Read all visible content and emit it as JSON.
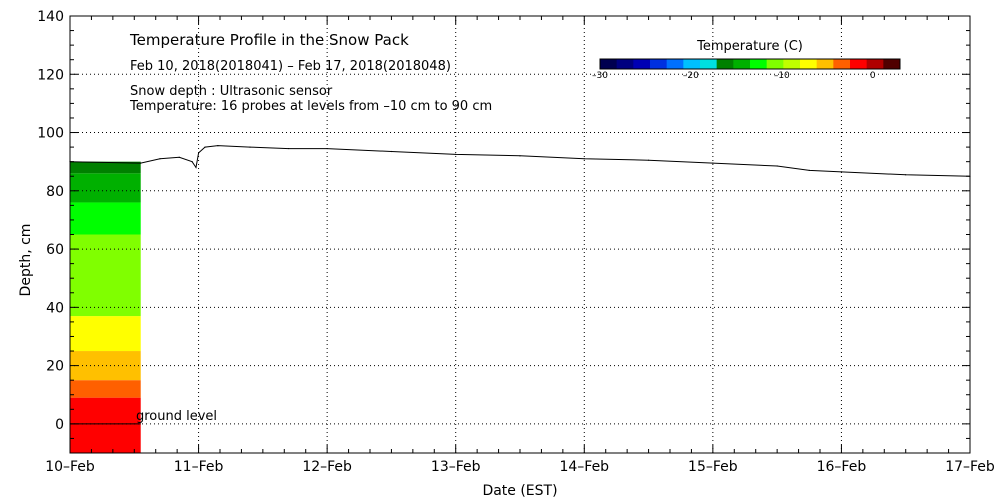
{
  "chart_data": {
    "type": "area",
    "title": "Temperature Profile in the Snow Pack",
    "subtitle": "Feb 10, 2018(2018041) – Feb 17, 2018(2018048)",
    "annotations": [
      "Snow depth : Ultrasonic sensor",
      "Temperature: 16 probes at levels from –10 cm to 90 cm"
    ],
    "ground_label": "ground level",
    "xlabel": "Date (EST)",
    "ylabel": "Depth, cm",
    "xlim": [
      0,
      7
    ],
    "ylim": [
      -10,
      140
    ],
    "x_ticks": [
      "10–Feb",
      "11–Feb",
      "12–Feb",
      "13–Feb",
      "14–Feb",
      "15–Feb",
      "16–Feb",
      "17–Feb"
    ],
    "y_ticks": [
      0,
      20,
      40,
      60,
      80,
      100,
      120,
      140
    ],
    "grid": true,
    "colorbar": {
      "title": "Temperature (C)",
      "tick_labels": [
        "–30",
        "–20",
        "–10",
        "0"
      ],
      "tick_values": [
        -30,
        -20,
        -10,
        0
      ],
      "range": [
        -30,
        3
      ],
      "colors": [
        "#000050",
        "#000080",
        "#0000b4",
        "#0030e0",
        "#0070ff",
        "#00c0ff",
        "#00e0e0",
        "#008000",
        "#00b000",
        "#00ff00",
        "#80ff00",
        "#c0ff00",
        "#ffff00",
        "#ffc000",
        "#ff6000",
        "#ff0000",
        "#b00000",
        "#500000"
      ]
    },
    "temperature_profile": {
      "x_end": 0.55,
      "bands": [
        {
          "y0": -10,
          "y1": 9,
          "color": "#ff0000"
        },
        {
          "y0": 9,
          "y1": 15,
          "color": "#ff6000"
        },
        {
          "y0": 15,
          "y1": 25,
          "color": "#ffc000"
        },
        {
          "y0": 25,
          "y1": 37,
          "color": "#ffff00"
        },
        {
          "y0": 37,
          "y1": 65,
          "color": "#80ff00"
        },
        {
          "y0": 65,
          "y1": 76,
          "color": "#00ff00"
        },
        {
          "y0": 76,
          "y1": 86,
          "color": "#00b000"
        },
        {
          "y0": 86,
          "y1": 90,
          "color": "#008000"
        }
      ]
    },
    "series": [
      {
        "x": [
          0.0,
          0.55,
          0.7,
          0.85,
          0.95,
          0.98,
          1.0,
          1.05,
          1.15,
          1.4,
          1.7,
          2.0,
          2.5,
          3.0,
          3.5,
          4.0,
          4.5,
          5.0,
          5.5,
          5.75,
          6.0,
          6.5,
          7.0
        ],
        "y": [
          90.0,
          89.5,
          91.0,
          91.5,
          90.0,
          88.0,
          93.0,
          95.0,
          95.5,
          95.0,
          94.5,
          94.5,
          93.5,
          92.5,
          92.0,
          91.0,
          90.5,
          89.5,
          88.5,
          87.0,
          86.5,
          85.5,
          85.0
        ]
      }
    ]
  }
}
